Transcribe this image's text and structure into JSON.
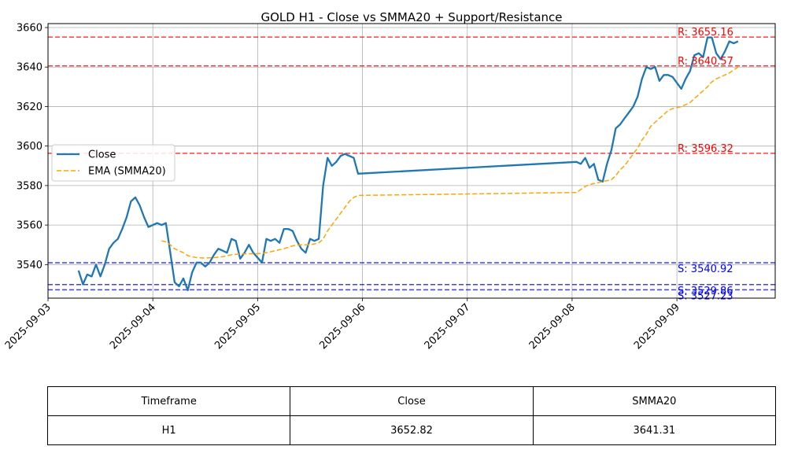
{
  "chart_data": {
    "type": "line",
    "title": "GOLD H1 - Close vs SMMA20 + Support/Resistance",
    "xlabel": "",
    "ylabel": "",
    "xlim": [
      "2025-09-03 00:00",
      "2025-09-09 22:30"
    ],
    "ylim": [
      3523,
      3662
    ],
    "x_ticks": [
      "2025-09-03",
      "2025-09-04",
      "2025-09-05",
      "2025-09-06",
      "2025-09-07",
      "2025-09-08",
      "2025-09-09"
    ],
    "y_ticks": [
      3540,
      3560,
      3580,
      3600,
      3620,
      3640,
      3660
    ],
    "grid": true,
    "legend_position": "center-left",
    "series": [
      {
        "name": "Close",
        "color": "#1f77b4",
        "style": "solid",
        "points": [
          [
            "2025-09-03 07:00",
            3537
          ],
          [
            "2025-09-03 08:00",
            3530
          ],
          [
            "2025-09-03 09:00",
            3535
          ],
          [
            "2025-09-03 10:00",
            3534
          ],
          [
            "2025-09-03 11:00",
            3540
          ],
          [
            "2025-09-03 12:00",
            3534
          ],
          [
            "2025-09-03 13:00",
            3540
          ],
          [
            "2025-09-03 14:00",
            3548
          ],
          [
            "2025-09-03 15:00",
            3551
          ],
          [
            "2025-09-03 16:00",
            3553
          ],
          [
            "2025-09-03 17:00",
            3558
          ],
          [
            "2025-09-03 18:00",
            3564
          ],
          [
            "2025-09-03 19:00",
            3572
          ],
          [
            "2025-09-03 20:00",
            3574
          ],
          [
            "2025-09-03 21:00",
            3570
          ],
          [
            "2025-09-03 22:00",
            3564
          ],
          [
            "2025-09-03 23:00",
            3559
          ],
          [
            "2025-09-04 01:00",
            3561
          ],
          [
            "2025-09-04 02:00",
            3560
          ],
          [
            "2025-09-04 03:00",
            3561
          ],
          [
            "2025-09-04 04:00",
            3546
          ],
          [
            "2025-09-04 05:00",
            3531
          ],
          [
            "2025-09-04 06:00",
            3529
          ],
          [
            "2025-09-04 07:00",
            3533
          ],
          [
            "2025-09-04 08:00",
            3527
          ],
          [
            "2025-09-04 09:00",
            3536
          ],
          [
            "2025-09-04 10:00",
            3541
          ],
          [
            "2025-09-04 11:00",
            3541
          ],
          [
            "2025-09-04 12:00",
            3539
          ],
          [
            "2025-09-04 13:00",
            3541
          ],
          [
            "2025-09-04 14:00",
            3545
          ],
          [
            "2025-09-04 15:00",
            3548
          ],
          [
            "2025-09-04 16:00",
            3547
          ],
          [
            "2025-09-04 17:00",
            3546
          ],
          [
            "2025-09-04 18:00",
            3553
          ],
          [
            "2025-09-04 19:00",
            3552
          ],
          [
            "2025-09-04 20:00",
            3543
          ],
          [
            "2025-09-04 21:00",
            3546
          ],
          [
            "2025-09-04 22:00",
            3550
          ],
          [
            "2025-09-04 23:00",
            3546
          ],
          [
            "2025-09-05 01:00",
            3541
          ],
          [
            "2025-09-05 02:00",
            3553
          ],
          [
            "2025-09-05 03:00",
            3552
          ],
          [
            "2025-09-05 04:00",
            3553
          ],
          [
            "2025-09-05 05:00",
            3551
          ],
          [
            "2025-09-05 06:00",
            3558
          ],
          [
            "2025-09-05 07:00",
            3558
          ],
          [
            "2025-09-05 08:00",
            3557
          ],
          [
            "2025-09-05 09:00",
            3552
          ],
          [
            "2025-09-05 10:00",
            3548
          ],
          [
            "2025-09-05 11:00",
            3546
          ],
          [
            "2025-09-05 12:00",
            3553
          ],
          [
            "2025-09-05 13:00",
            3552
          ],
          [
            "2025-09-05 14:00",
            3553
          ],
          [
            "2025-09-05 15:00",
            3580
          ],
          [
            "2025-09-05 16:00",
            3594
          ],
          [
            "2025-09-05 17:00",
            3590
          ],
          [
            "2025-09-05 18:00",
            3592
          ],
          [
            "2025-09-05 19:00",
            3595
          ],
          [
            "2025-09-05 20:00",
            3596
          ],
          [
            "2025-09-05 21:00",
            3595
          ],
          [
            "2025-09-05 22:00",
            3594
          ],
          [
            "2025-09-05 23:00",
            3586
          ],
          [
            "2025-09-08 01:00",
            3592
          ],
          [
            "2025-09-08 02:00",
            3591
          ],
          [
            "2025-09-08 03:00",
            3594
          ],
          [
            "2025-09-08 04:00",
            3589
          ],
          [
            "2025-09-08 05:00",
            3591
          ],
          [
            "2025-09-08 06:00",
            3583
          ],
          [
            "2025-09-08 07:00",
            3582
          ],
          [
            "2025-09-08 08:00",
            3591
          ],
          [
            "2025-09-08 09:00",
            3598
          ],
          [
            "2025-09-08 10:00",
            3609
          ],
          [
            "2025-09-08 11:00",
            3611
          ],
          [
            "2025-09-08 12:00",
            3614
          ],
          [
            "2025-09-08 13:00",
            3617
          ],
          [
            "2025-09-08 14:00",
            3620
          ],
          [
            "2025-09-08 15:00",
            3625
          ],
          [
            "2025-09-08 16:00",
            3634
          ],
          [
            "2025-09-08 17:00",
            3640
          ],
          [
            "2025-09-08 18:00",
            3639
          ],
          [
            "2025-09-08 19:00",
            3640
          ],
          [
            "2025-09-08 20:00",
            3633
          ],
          [
            "2025-09-08 21:00",
            3636
          ],
          [
            "2025-09-08 22:00",
            3636
          ],
          [
            "2025-09-08 23:00",
            3635
          ],
          [
            "2025-09-09 01:00",
            3629
          ],
          [
            "2025-09-09 02:00",
            3634
          ],
          [
            "2025-09-09 03:00",
            3638
          ],
          [
            "2025-09-09 04:00",
            3646
          ],
          [
            "2025-09-09 05:00",
            3647
          ],
          [
            "2025-09-09 06:00",
            3645
          ],
          [
            "2025-09-09 07:00",
            3655
          ],
          [
            "2025-09-09 08:00",
            3655
          ],
          [
            "2025-09-09 09:00",
            3647
          ],
          [
            "2025-09-09 10:00",
            3644
          ],
          [
            "2025-09-09 11:00",
            3648
          ],
          [
            "2025-09-09 12:00",
            3653
          ],
          [
            "2025-09-09 13:00",
            3652
          ],
          [
            "2025-09-09 14:00",
            3653
          ]
        ]
      },
      {
        "name": "EMA (SMMA20)",
        "color": "#ffa500",
        "style": "dashed",
        "points": [
          [
            "2025-09-04 02:00",
            3552
          ],
          [
            "2025-09-04 03:00",
            3551.5
          ],
          [
            "2025-09-04 04:00",
            3550
          ],
          [
            "2025-09-04 05:00",
            3548
          ],
          [
            "2025-09-04 06:00",
            3547
          ],
          [
            "2025-09-04 07:00",
            3546
          ],
          [
            "2025-09-04 08:00",
            3544.5
          ],
          [
            "2025-09-04 09:00",
            3544
          ],
          [
            "2025-09-04 10:00",
            3543.5
          ],
          [
            "2025-09-04 12:00",
            3543.3
          ],
          [
            "2025-09-04 14:00",
            3543.5
          ],
          [
            "2025-09-04 16:00",
            3544
          ],
          [
            "2025-09-04 18:00",
            3545
          ],
          [
            "2025-09-04 20:00",
            3545.3
          ],
          [
            "2025-09-04 22:00",
            3545.5
          ],
          [
            "2025-09-05 00:00",
            3545.5
          ],
          [
            "2025-09-05 02:00",
            3546
          ],
          [
            "2025-09-05 04:00",
            3547
          ],
          [
            "2025-09-05 06:00",
            3548
          ],
          [
            "2025-09-05 08:00",
            3549.5
          ],
          [
            "2025-09-05 10:00",
            3550
          ],
          [
            "2025-09-05 12:00",
            3550
          ],
          [
            "2025-09-05 14:00",
            3551
          ],
          [
            "2025-09-05 15:00",
            3553
          ],
          [
            "2025-09-05 16:00",
            3557
          ],
          [
            "2025-09-05 17:00",
            3560
          ],
          [
            "2025-09-05 18:00",
            3563
          ],
          [
            "2025-09-05 19:00",
            3566
          ],
          [
            "2025-09-05 20:00",
            3569
          ],
          [
            "2025-09-05 21:00",
            3572
          ],
          [
            "2025-09-05 22:00",
            3574
          ],
          [
            "2025-09-05 23:00",
            3575
          ],
          [
            "2025-09-08 01:00",
            3576.5
          ],
          [
            "2025-09-08 02:00",
            3578
          ],
          [
            "2025-09-08 03:00",
            3579.5
          ],
          [
            "2025-09-08 04:00",
            3580.5
          ],
          [
            "2025-09-08 05:00",
            3581
          ],
          [
            "2025-09-08 06:00",
            3581.5
          ],
          [
            "2025-09-08 07:00",
            3582
          ],
          [
            "2025-09-08 08:00",
            3582.5
          ],
          [
            "2025-09-08 09:00",
            3583
          ],
          [
            "2025-09-08 10:00",
            3585
          ],
          [
            "2025-09-08 11:00",
            3588
          ],
          [
            "2025-09-08 12:00",
            3590
          ],
          [
            "2025-09-08 13:00",
            3593
          ],
          [
            "2025-09-08 14:00",
            3596
          ],
          [
            "2025-09-08 15:00",
            3599
          ],
          [
            "2025-09-08 16:00",
            3603
          ],
          [
            "2025-09-08 17:00",
            3606
          ],
          [
            "2025-09-08 18:00",
            3610
          ],
          [
            "2025-09-08 19:00",
            3612
          ],
          [
            "2025-09-08 20:00",
            3614
          ],
          [
            "2025-09-08 21:00",
            3616
          ],
          [
            "2025-09-08 22:00",
            3618
          ],
          [
            "2025-09-08 23:00",
            3619
          ],
          [
            "2025-09-09 01:00",
            3620
          ],
          [
            "2025-09-09 02:00",
            3621
          ],
          [
            "2025-09-09 03:00",
            3622
          ],
          [
            "2025-09-09 04:00",
            3624
          ],
          [
            "2025-09-09 05:00",
            3626
          ],
          [
            "2025-09-09 06:00",
            3628
          ],
          [
            "2025-09-09 07:00",
            3630
          ],
          [
            "2025-09-09 08:00",
            3632.5
          ],
          [
            "2025-09-09 09:00",
            3634
          ],
          [
            "2025-09-09 10:00",
            3635
          ],
          [
            "2025-09-09 11:00",
            3636
          ],
          [
            "2025-09-09 12:00",
            3637
          ],
          [
            "2025-09-09 13:00",
            3638.5
          ],
          [
            "2025-09-09 14:00",
            3640
          ]
        ]
      }
    ],
    "levels": [
      {
        "kind": "resistance",
        "value": 3655.16,
        "label": "R: 3655.16",
        "color": "#ff0000"
      },
      {
        "kind": "resistance",
        "value": 3640.57,
        "label": "R: 3640.57",
        "color": "#ff0000"
      },
      {
        "kind": "resistance",
        "value": 3596.32,
        "label": "R: 3596.32",
        "color": "#ff0000"
      },
      {
        "kind": "support",
        "value": 3540.92,
        "label": "S: 3540.92",
        "color": "#0000ff"
      },
      {
        "kind": "support",
        "value": 3529.86,
        "label": "S: 3529.86",
        "color": "#0000ff"
      },
      {
        "kind": "support",
        "value": 3527.23,
        "label": "S: 3527.23",
        "color": "#0000ff"
      }
    ]
  },
  "table": {
    "headers": [
      "Timeframe",
      "Close",
      "SMMA20"
    ],
    "row": [
      "H1",
      "3652.82",
      "3641.31"
    ]
  }
}
